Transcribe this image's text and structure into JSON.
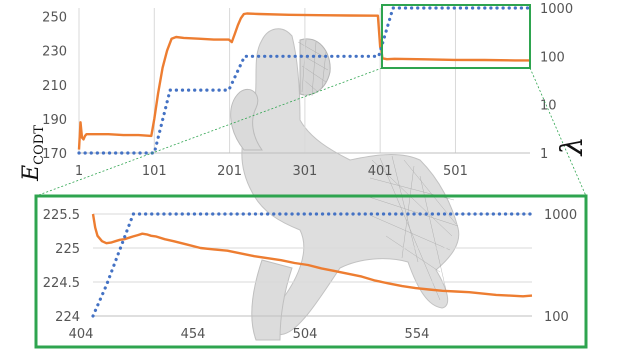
{
  "colors": {
    "energy": "#ed7d31",
    "lambda": "#4472c4",
    "grid": "#d9d9d9",
    "axis": "#bfbfbf",
    "zoom_box": "#2ea44f",
    "tick_text": "#555555"
  },
  "chart_data": [
    {
      "id": "overview",
      "type": "line",
      "xlabel": "",
      "ylabel_left": "E",
      "ylabel_left_sub": "CODT",
      "ylabel_right": "λ",
      "xlim": [
        1,
        600
      ],
      "ylim_left": [
        170,
        255
      ],
      "ylim_right": [
        1,
        1000
      ],
      "y_right_scale": "log",
      "x_ticks": [
        "1",
        "101",
        "201",
        "301",
        "401",
        "501"
      ],
      "x_tick_values": [
        1,
        101,
        201,
        301,
        401,
        501
      ],
      "y_left_ticks": [
        "170",
        "190",
        "210",
        "230",
        "250"
      ],
      "y_left_tick_values": [
        170,
        190,
        210,
        230,
        250
      ],
      "y_right_ticks": [
        "1",
        "10",
        "100",
        "1000"
      ],
      "y_right_tick_values": [
        1,
        10,
        100,
        1000
      ],
      "grid": "vertical",
      "series": [
        {
          "axis": "left",
          "style": "solid",
          "x": [
            1,
            3,
            5,
            7,
            9,
            11,
            15,
            20,
            40,
            60,
            80,
            97,
            101,
            106,
            112,
            118,
            124,
            130,
            140,
            160,
            180,
            200,
            204,
            208,
            212,
            216,
            220,
            224,
            240,
            280,
            320,
            360,
            398,
            401,
            402,
            403,
            404,
            410,
            420,
            460,
            500,
            540,
            580,
            600
          ],
          "values": [
            172,
            188,
            179,
            178,
            180,
            181,
            181,
            181,
            181,
            180.5,
            180.5,
            180,
            190,
            205,
            220,
            230,
            237,
            238,
            237.5,
            237,
            236.5,
            236.5,
            235,
            240,
            245,
            249,
            251.5,
            251.8,
            251.5,
            251,
            250.8,
            250.6,
            250.5,
            232,
            236,
            229,
            225.5,
            225,
            225.2,
            224.9,
            224.6,
            224.5,
            224.3,
            224.3
          ]
        },
        {
          "axis": "right",
          "style": "dotted",
          "x": [
            1,
            101,
            122,
            200,
            221,
            399,
            418,
            600
          ],
          "values": [
            1,
            1,
            20,
            20,
            100,
            100,
            1000,
            1000
          ]
        }
      ]
    },
    {
      "id": "zoom",
      "type": "line",
      "xlabel": "",
      "ylabel_left": "",
      "ylabel_right": "",
      "xlim": [
        404,
        600
      ],
      "ylim_left": [
        224,
        225.5
      ],
      "ylim_right": [
        100,
        1000
      ],
      "y_right_scale": "log",
      "x_ticks": [
        "404",
        "454",
        "504",
        "554"
      ],
      "x_tick_values": [
        404,
        454,
        504,
        554
      ],
      "y_left_ticks": [
        "224",
        "224.5",
        "225",
        "225.5"
      ],
      "y_left_tick_values": [
        224,
        224.5,
        225,
        225.5
      ],
      "y_right_ticks": [
        "100",
        "1000"
      ],
      "y_right_tick_values": [
        100,
        1000
      ],
      "grid": "horizontal",
      "series": [
        {
          "axis": "left",
          "style": "solid",
          "x": [
            404,
            405,
            406,
            408,
            410,
            412,
            414,
            416,
            418,
            420,
            422,
            424,
            426,
            428,
            430,
            432,
            436,
            440,
            446,
            452,
            458,
            464,
            470,
            476,
            482,
            488,
            494,
            500,
            506,
            512,
            518,
            524,
            530,
            536,
            542,
            548,
            554,
            560,
            566,
            572,
            578,
            584,
            590,
            596,
            600
          ],
          "values": [
            225.5,
            225.3,
            225.18,
            225.1,
            225.07,
            225.08,
            225.1,
            225.12,
            225.13,
            225.15,
            225.17,
            225.19,
            225.21,
            225.2,
            225.18,
            225.17,
            225.13,
            225.1,
            225.05,
            225.0,
            224.98,
            224.96,
            224.92,
            224.88,
            224.85,
            224.82,
            224.78,
            224.75,
            224.7,
            224.66,
            224.62,
            224.58,
            224.52,
            224.48,
            224.44,
            224.41,
            224.39,
            224.37,
            224.36,
            224.35,
            224.33,
            224.31,
            224.3,
            224.29,
            224.3
          ]
        },
        {
          "axis": "right",
          "style": "dotted",
          "x": [
            404,
            410,
            416,
            422,
            600
          ],
          "values": [
            100,
            200,
            450,
            1000,
            1000
          ]
        }
      ]
    }
  ]
}
